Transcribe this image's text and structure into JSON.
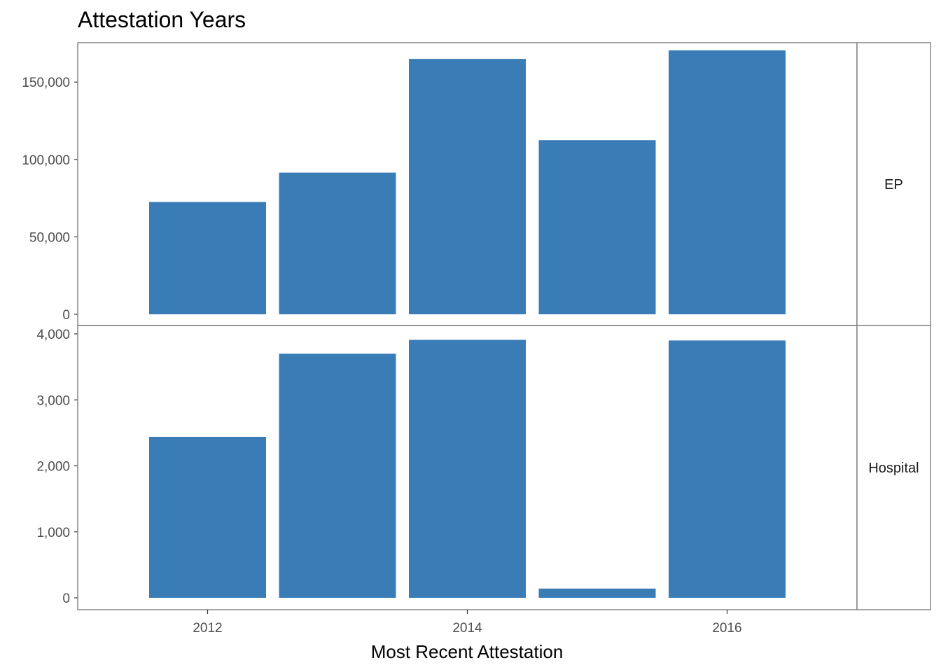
{
  "chart_data": {
    "type": "bar",
    "title": "Attestation Years",
    "xlabel": "Most Recent Attestation",
    "ylabel": "",
    "x_ticks": [
      2012,
      2014,
      2016
    ],
    "xlim": [
      2011,
      2017
    ],
    "bar_color": "#3A7DB6",
    "panel_border_color": "#7F7F7F",
    "background": "#FFFFFF",
    "grid": false,
    "legend": "none",
    "facets": [
      {
        "label": "EP",
        "ylim": [
          0,
          180000
        ],
        "y_ticks": [
          0,
          50000,
          100000,
          150000
        ],
        "y_tick_labels": [
          "0",
          "50,000",
          "100,000",
          "150,000"
        ],
        "x": [
          2012,
          2013,
          2014,
          2015,
          2016
        ],
        "values": [
          72500,
          91500,
          165000,
          112500,
          170500
        ]
      },
      {
        "label": "Hospital",
        "ylim": [
          0,
          4100
        ],
        "y_ticks": [
          0,
          1000,
          2000,
          3000,
          4000
        ],
        "y_tick_labels": [
          "0",
          "1,000",
          "2,000",
          "3,000",
          "4,000"
        ],
        "x": [
          2012,
          2013,
          2014,
          2015,
          2016
        ],
        "values": [
          2440,
          3700,
          3910,
          140,
          3900
        ]
      }
    ]
  }
}
